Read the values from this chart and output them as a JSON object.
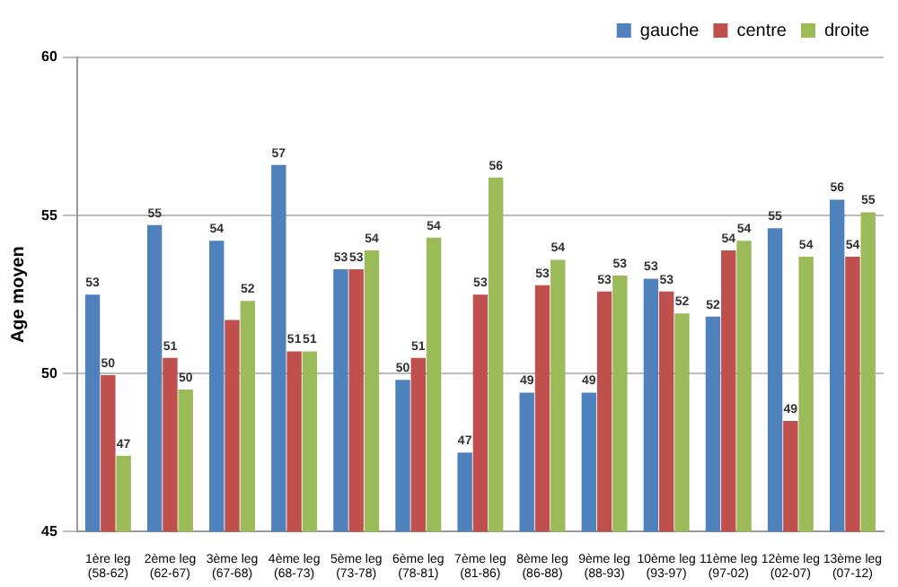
{
  "chart_data": {
    "type": "bar",
    "ylabel": "Age moyen",
    "categories": [
      "1ère leg (58-62)",
      "2ème leg (62-67)",
      "3ème leg (67-68)",
      "4ème leg (68-73)",
      "5ème leg (73-78)",
      "6ème leg (78-81)",
      "7ème leg (81-86)",
      "8ème leg (86-88)",
      "9ème leg (88-93)",
      "10ème leg (93-97)",
      "11ème leg (97-02)",
      "12ème leg (02-07)",
      "13ème leg (07-12)"
    ],
    "series": [
      {
        "name": "gauche",
        "color": "#4f81bd",
        "values": [
          52.5,
          54.7,
          54.2,
          56.6,
          53.3,
          49.8,
          47.5,
          49.4,
          49.4,
          53.0,
          51.8,
          54.6,
          55.5
        ],
        "value_labels": [
          "53",
          "55",
          "54",
          "57",
          "53",
          "50",
          "47",
          "49",
          "49",
          "53",
          "52",
          "55",
          "56"
        ]
      },
      {
        "name": "centre",
        "color": "#c0504d",
        "values": [
          49.95,
          50.5,
          51.7,
          50.7,
          53.3,
          50.5,
          52.5,
          52.8,
          52.6,
          52.6,
          53.9,
          48.5,
          53.7
        ],
        "value_labels": [
          "50",
          "51",
          null,
          "51",
          "53",
          "51",
          "53",
          "53",
          "53",
          "53",
          "54",
          "49",
          "54"
        ]
      },
      {
        "name": "droite",
        "color": "#9bbb59",
        "values": [
          47.4,
          49.5,
          52.3,
          50.7,
          53.9,
          54.3,
          56.2,
          53.6,
          53.1,
          51.9,
          54.2,
          53.7,
          55.1
        ],
        "value_labels": [
          "47",
          "50",
          "52",
          "51",
          "54",
          "54",
          "56",
          "54",
          "53",
          "52",
          "54",
          "54",
          "55"
        ]
      }
    ],
    "ylim": [
      45,
      60
    ],
    "yticks": [
      45,
      50,
      55,
      60
    ],
    "grid": "y",
    "legend": "top right"
  }
}
